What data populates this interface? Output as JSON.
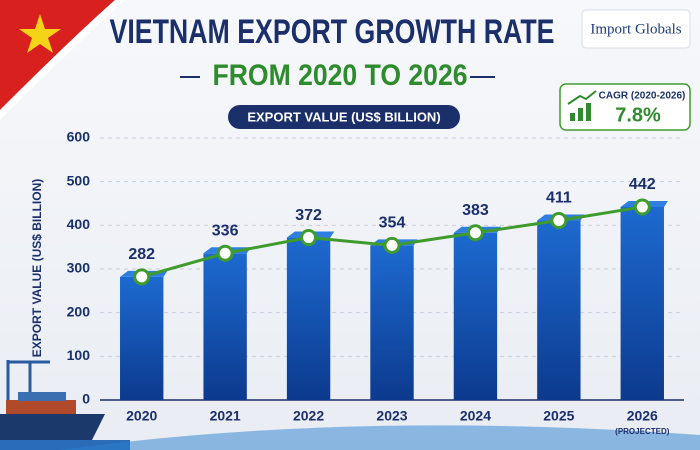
{
  "brand": "Import Globals",
  "chart_data": {
    "type": "bar-line",
    "title": "VIETNAM EXPORT GROWTH RATE",
    "subtitle": "FROM 2020 TO 2026",
    "value_caption": "EXPORT VALUE (US$ BILLION)",
    "y_label": "EXPORT VALUE (US$ BILLION)",
    "categories": [
      "2020",
      "2021",
      "2022",
      "2023",
      "2024",
      "2025",
      "2026"
    ],
    "category_note": "(PROJECTED)",
    "values": [
      282,
      336,
      372,
      354,
      383,
      411,
      442
    ],
    "color": "#1456b8",
    "line_color": "#3f9b2c",
    "ylim": [
      0,
      600
    ],
    "yticks": [
      0,
      100,
      200,
      300,
      400,
      500,
      600
    ],
    "grid": true,
    "cagr": {
      "label": "CAGR (2020-2026)",
      "value": "7.8%"
    }
  }
}
